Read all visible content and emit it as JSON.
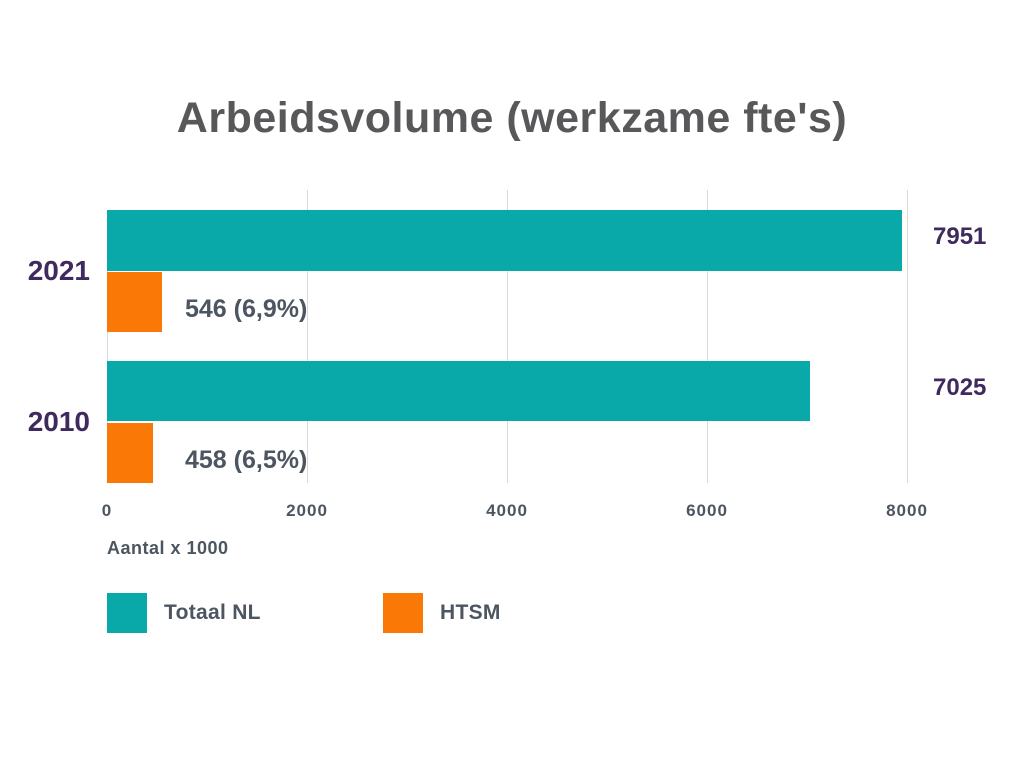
{
  "chart_data": {
    "type": "bar",
    "orientation": "horizontal",
    "title": "Arbeidsvolume (werkzame fte's)",
    "categories": [
      "2021",
      "2010"
    ],
    "series": [
      {
        "name": "Totaal NL",
        "color": "#0AA9A9",
        "values": [
          7951,
          7025
        ],
        "value_labels": [
          "7951",
          "7025"
        ]
      },
      {
        "name": "HTSM",
        "color": "#FA7806",
        "values": [
          546,
          458
        ],
        "value_labels": [
          "546 (6,9%)",
          "458 (6,5%)"
        ]
      }
    ],
    "xlabel": "Aantal x 1000",
    "x_ticks": [
      0,
      2000,
      4000,
      6000,
      8000
    ],
    "xlim": [
      0,
      8000
    ],
    "grid": "vertical",
    "legend_position": "bottom-left",
    "legend": [
      "Totaal NL",
      "HTSM"
    ]
  },
  "colors": {
    "teal": "#0AA9A9",
    "orange": "#FA7806",
    "purple_text": "#3F2A5F",
    "title_gray": "#58585A",
    "text_gray": "#4C5560",
    "gridline": "#D9D9D9",
    "background": "#FFFFFF"
  }
}
